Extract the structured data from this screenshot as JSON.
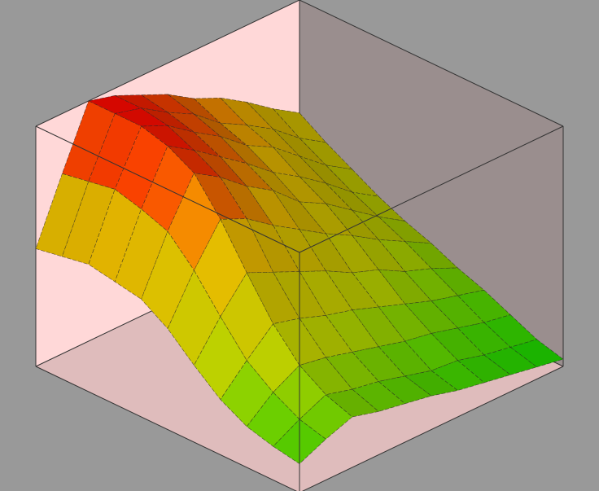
{
  "chart_data": {
    "type": "surface3d",
    "title": "",
    "xlabel": "",
    "ylabel": "",
    "zlabel": "",
    "x": [
      0,
      0.1,
      0.2,
      0.3,
      0.4,
      0.5,
      0.6,
      0.7,
      0.8,
      0.9,
      1.0
    ],
    "y": [
      0,
      0.1,
      0.2,
      0.3,
      0.4,
      0.5,
      0.6,
      0.7,
      0.8,
      0.9,
      1.0
    ],
    "zlim": [
      0,
      1
    ],
    "z": [
      [
        0.53,
        0.46,
        0.4,
        0.34,
        0.29,
        0.25,
        0.2,
        0.16,
        0.11,
        0.06,
        0.03
      ],
      [
        0.6,
        0.53,
        0.47,
        0.41,
        0.36,
        0.31,
        0.25,
        0.19,
        0.13,
        0.08,
        0.05
      ],
      [
        0.68,
        0.62,
        0.56,
        0.5,
        0.44,
        0.37,
        0.29,
        0.22,
        0.16,
        0.1,
        0.07
      ],
      [
        0.75,
        0.69,
        0.65,
        0.58,
        0.52,
        0.44,
        0.35,
        0.26,
        0.19,
        0.13,
        0.09
      ],
      [
        0.8,
        0.75,
        0.71,
        0.65,
        0.58,
        0.5,
        0.39,
        0.3,
        0.21,
        0.14,
        0.11
      ],
      [
        0.87,
        0.84,
        0.8,
        0.74,
        0.68,
        0.57,
        0.45,
        0.34,
        0.24,
        0.17,
        0.14
      ],
      [
        0.92,
        0.9,
        0.87,
        0.82,
        0.75,
        0.64,
        0.5,
        0.37,
        0.27,
        0.2,
        0.16
      ],
      [
        0.97,
        0.97,
        0.95,
        0.9,
        0.84,
        0.72,
        0.55,
        0.41,
        0.3,
        0.22,
        0.18
      ],
      [
        1.0,
        1.0,
        1.0,
        0.97,
        0.91,
        0.77,
        0.6,
        0.44,
        0.32,
        0.25,
        0.21
      ],
      [
        0.75,
        0.77,
        0.79,
        0.76,
        0.72,
        0.61,
        0.47,
        0.34,
        0.26,
        0.2,
        0.17
      ],
      [
        0.49,
        0.51,
        0.53,
        0.51,
        0.49,
        0.42,
        0.32,
        0.23,
        0.17,
        0.14,
        0.12
      ]
    ],
    "colormap": [
      "#00c800",
      "#b4c800",
      "#e6b400",
      "#ff0000"
    ],
    "grid": false,
    "legend": "none"
  },
  "colors": {
    "background": "#999999",
    "left_wall": "#ffd8d8",
    "right_wall": "#9a8e8e",
    "floor": "#dfbcbc",
    "mesh_line": "#222222",
    "box_edge": "#333333"
  }
}
